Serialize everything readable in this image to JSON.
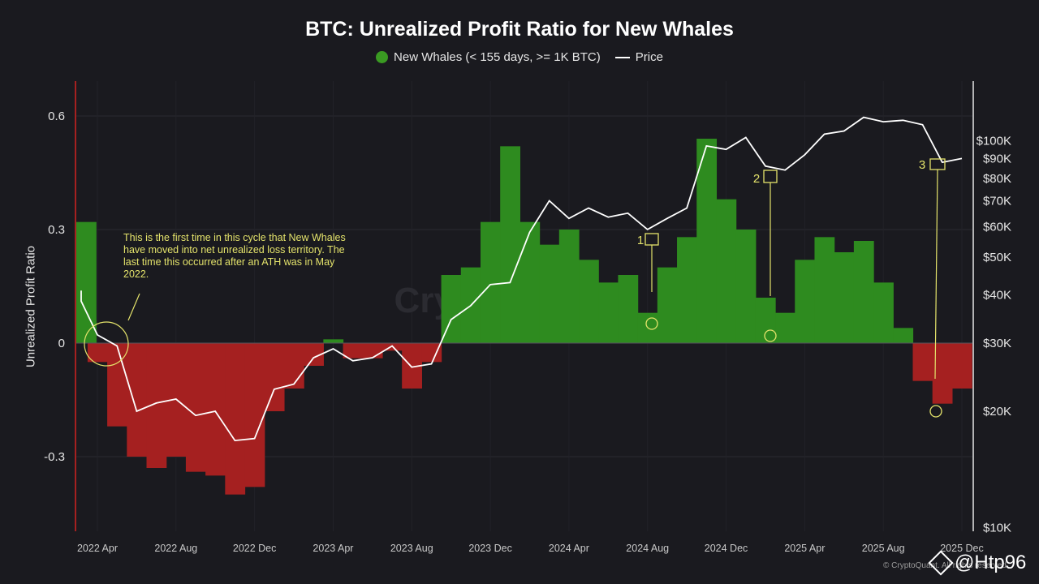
{
  "chart_data": {
    "type": "area",
    "title": "BTC: Unrealized Profit Ratio for New Whales",
    "ylabel": "Unrealized Profit Ratio",
    "y_left_ticks": [
      "0.6",
      "0.3",
      "0",
      "-0.3"
    ],
    "y_left_range": [
      -0.5,
      0.68
    ],
    "y_right_ticks": [
      "$100K",
      "$90K",
      "$80K",
      "$70K",
      "$60K",
      "$50K",
      "$40K",
      "$30K",
      "$20K",
      "$10K"
    ],
    "y_right_scale": "log",
    "x_ticks": [
      "2022 Apr",
      "2022 Aug",
      "2022 Dec",
      "2023 Apr",
      "2023 Aug",
      "2023 Dec",
      "2024 Apr",
      "2024 Aug",
      "2024 Dec",
      "2025 Apr",
      "2025 Aug",
      "2025 Dec"
    ],
    "grid": true,
    "legend_position": "top-center",
    "series": [
      {
        "name": "New Whales (< 155 days, >= 1K BTC)",
        "kind": "area",
        "positive_color": "#2e8b1f",
        "negative_color": "#a52020",
        "x": [
          "2022-02",
          "2022-03",
          "2022-04",
          "2022-05",
          "2022-06",
          "2022-07",
          "2022-08",
          "2022-09",
          "2022-10",
          "2022-11",
          "2022-12",
          "2023-01",
          "2023-02",
          "2023-03",
          "2023-04",
          "2023-05",
          "2023-06",
          "2023-07",
          "2023-08",
          "2023-09",
          "2023-10",
          "2023-11",
          "2023-12",
          "2024-01",
          "2024-02",
          "2024-03",
          "2024-04",
          "2024-05",
          "2024-06",
          "2024-07",
          "2024-08",
          "2024-09",
          "2024-10",
          "2024-11",
          "2024-12",
          "2025-01",
          "2025-02",
          "2025-03",
          "2025-04",
          "2025-05",
          "2025-06",
          "2025-07",
          "2025-08",
          "2025-09",
          "2025-10",
          "2025-11",
          "2025-12"
        ],
        "values": [
          0.32,
          0.06,
          -0.05,
          -0.22,
          -0.3,
          -0.33,
          -0.3,
          -0.34,
          -0.35,
          -0.4,
          -0.38,
          -0.18,
          -0.12,
          -0.06,
          0.01,
          -0.04,
          -0.04,
          -0.02,
          -0.12,
          -0.05,
          0.18,
          0.2,
          0.32,
          0.52,
          0.32,
          0.26,
          0.3,
          0.22,
          0.16,
          0.18,
          0.08,
          0.2,
          0.28,
          0.54,
          0.38,
          0.3,
          0.12,
          0.08,
          0.22,
          0.28,
          0.24,
          0.27,
          0.16,
          0.04,
          -0.1,
          -0.16,
          -0.12
        ]
      },
      {
        "name": "Price",
        "kind": "line",
        "axis": "right",
        "color": "#ffffff",
        "x": [
          "2022-02",
          "2022-03",
          "2022-04",
          "2022-05",
          "2022-06",
          "2022-07",
          "2022-08",
          "2022-09",
          "2022-10",
          "2022-11",
          "2022-12",
          "2023-01",
          "2023-02",
          "2023-03",
          "2023-04",
          "2023-05",
          "2023-06",
          "2023-07",
          "2023-08",
          "2023-09",
          "2023-10",
          "2023-11",
          "2023-12",
          "2024-01",
          "2024-02",
          "2024-03",
          "2024-04",
          "2024-05",
          "2024-06",
          "2024-07",
          "2024-08",
          "2024-09",
          "2024-10",
          "2024-11",
          "2024-12",
          "2025-01",
          "2025-02",
          "2025-03",
          "2025-04",
          "2025-05",
          "2025-06",
          "2025-07",
          "2025-08",
          "2025-09",
          "2025-10",
          "2025-11",
          "2025-12"
        ],
        "values": [
          41000,
          38500,
          31500,
          29500,
          20000,
          21000,
          21500,
          19500,
          20000,
          16800,
          17000,
          22800,
          23500,
          27500,
          29000,
          27000,
          27500,
          29500,
          26000,
          26500,
          34500,
          37500,
          42500,
          43000,
          58000,
          70000,
          63000,
          67000,
          63500,
          65000,
          59000,
          63000,
          67000,
          97000,
          95000,
          102000,
          86000,
          84000,
          92000,
          104000,
          106000,
          115000,
          112000,
          113000,
          110000,
          88000,
          90000
        ]
      }
    ],
    "annotations": [
      {
        "text": "This is the first time in this cycle that New Whales have moved into net unrealized loss territory. The last time this occurred after an ATH was in May 2022."
      },
      {
        "label": "1",
        "x": "2024-08"
      },
      {
        "label": "2",
        "x": "2025-02"
      },
      {
        "label": "3",
        "x": "2025-11"
      }
    ]
  },
  "credit": "© CryptoQuant. All rights reserved.",
  "watermark": "CryptoQuant",
  "brand": "@Htp96"
}
